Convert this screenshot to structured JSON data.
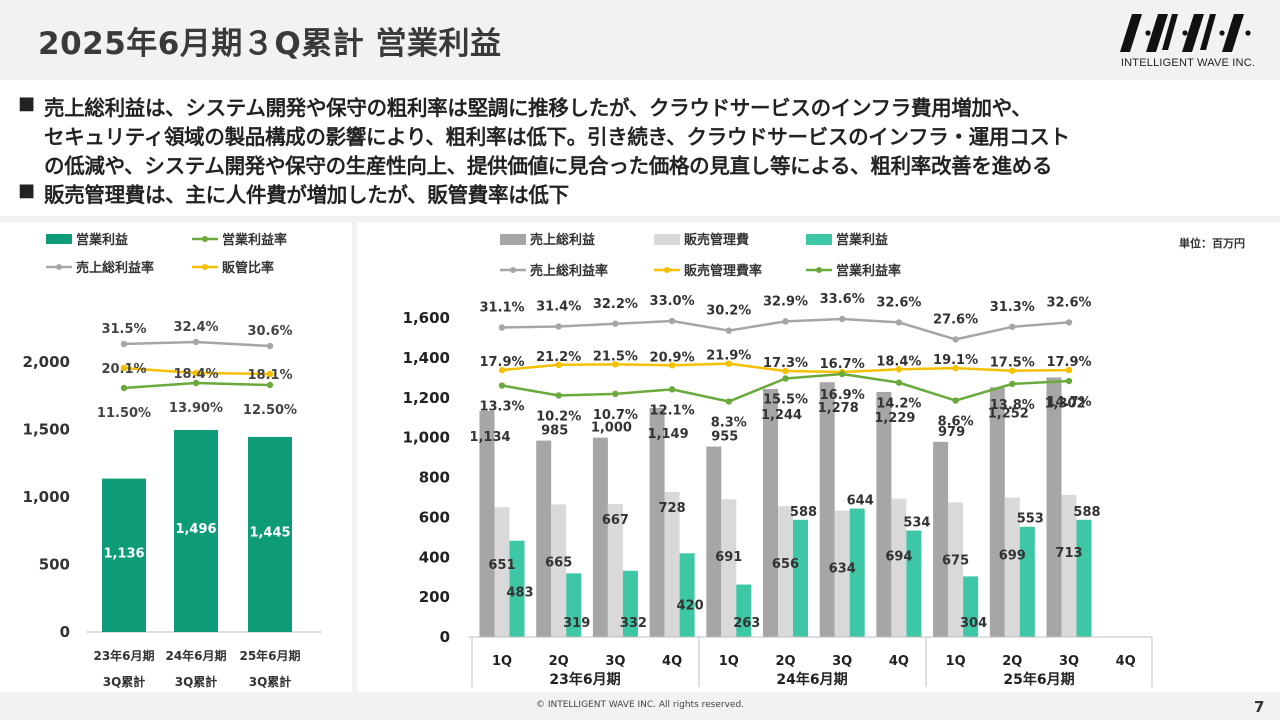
{
  "title": "2025年6月期３Q累計 営業利益",
  "logo": {
    "brand": "INTELLIGENT WAVE INC."
  },
  "bullets": [
    "売上総利益は、システム開発や保守の粗利率は堅調に推移したが、クラウドサービスのインフラ費用増加や、",
    "セキュリティ領域の製品構成の影響により、粗利率は低下。引き続き、クラウドサービスのインフラ・運用コスト",
    "の低減や、システム開発や保守の生産性向上、提供価値に見合った価格の見直し等による、粗利率改善を進める",
    "販売管理費は、主に人件費が増加したが、販管費率は低下"
  ],
  "footer": "© INTELLIGENT WAVE INC. All rights reserved.",
  "page_number": "7",
  "colors": {
    "op_profit": "#0e9c78",
    "gross": "#a6a6a6",
    "sga": "#d9d9d9",
    "op_profit_q": "#3ec7a4",
    "rate_gross": "#a6a6a6",
    "rate_sga": "#f5c000",
    "rate_op": "#6aaa3c"
  },
  "chart_data": [
    {
      "type": "bar",
      "legend": [
        "営業利益",
        "営業利益率",
        "売上総利益率",
        "販管比率"
      ],
      "categories": [
        [
          "23年6月期",
          "3Q累計"
        ],
        [
          "24年6月期",
          "3Q累計"
        ],
        [
          "25年6月期",
          "3Q累計"
        ]
      ],
      "yticks": [
        "0",
        "500",
        "1,000",
        "1,500",
        "2,000"
      ],
      "ylim": [
        0,
        2000
      ],
      "series": [
        {
          "name": "営業利益",
          "values": [
            1136,
            1496,
            1445
          ],
          "labels": [
            "1,136",
            "1,496",
            "1,445"
          ]
        }
      ],
      "rate_series": [
        {
          "name": "売上総利益率",
          "values": [
            31.5,
            32.4,
            30.6
          ],
          "labels": [
            "31.5%",
            "32.4%",
            "30.6%"
          ]
        },
        {
          "name": "販管比率",
          "values": [
            20.1,
            18.4,
            18.1
          ],
          "labels": [
            "20.1%",
            "18.4%",
            "18.1%"
          ]
        },
        {
          "name": "営業利益率",
          "values": [
            11.5,
            13.9,
            12.5
          ],
          "labels": [
            "11.50%",
            "13.90%",
            "12.50%"
          ]
        }
      ]
    },
    {
      "type": "bar",
      "unit": "単位：百万円",
      "legend": [
        "売上総利益",
        "販売管理費",
        "営業利益",
        "売上総利益率",
        "販売管理費率",
        "営業利益率"
      ],
      "categories": [
        "1Q",
        "2Q",
        "3Q",
        "4Q",
        "1Q",
        "2Q",
        "3Q",
        "4Q",
        "1Q",
        "2Q",
        "3Q",
        "4Q"
      ],
      "groups": [
        "23年6月期",
        "24年6月期",
        "25年6月期"
      ],
      "yticks": [
        "0",
        "200",
        "400",
        "600",
        "800",
        "1,000",
        "1,200",
        "1,400",
        "1,600"
      ],
      "ylim": [
        0,
        1600
      ],
      "series": [
        {
          "name": "売上総利益",
          "values": [
            1134,
            985,
            1000,
            1149,
            955,
            1244,
            1278,
            1229,
            979,
            1252,
            1302,
            null
          ],
          "labels": [
            "1,134",
            "985",
            "1,000",
            "1,149",
            "955",
            "1,244",
            "1,278",
            "1,229",
            "979",
            "1,252",
            "1,302",
            ""
          ]
        },
        {
          "name": "販売管理費",
          "values": [
            651,
            665,
            667,
            728,
            691,
            656,
            634,
            694,
            675,
            699,
            713,
            null
          ],
          "labels": [
            "651",
            "665",
            "667",
            "728",
            "691",
            "656",
            "634",
            "694",
            "675",
            "699",
            "713",
            ""
          ]
        },
        {
          "name": "営業利益",
          "values": [
            483,
            319,
            332,
            420,
            263,
            588,
            644,
            534,
            304,
            553,
            588,
            null
          ],
          "labels": [
            "483",
            "319",
            "332",
            "420",
            "263",
            "588",
            "644",
            "534",
            "304",
            "553",
            "588",
            ""
          ]
        }
      ],
      "rate_series": [
        {
          "name": "売上総利益率",
          "values": [
            31.1,
            31.4,
            32.2,
            33.0,
            30.2,
            32.9,
            33.6,
            32.6,
            27.6,
            31.3,
            32.6,
            null
          ],
          "labels": [
            "31.1%",
            "31.4%",
            "32.2%",
            "33.0%",
            "30.2%",
            "32.9%",
            "33.6%",
            "32.6%",
            "27.6%",
            "31.3%",
            "32.6%",
            ""
          ]
        },
        {
          "name": "販売管理費率",
          "values": [
            17.9,
            21.2,
            21.5,
            20.9,
            21.9,
            17.3,
            16.7,
            18.4,
            19.1,
            17.5,
            17.9,
            null
          ],
          "labels": [
            "17.9%",
            "21.2%",
            "21.5%",
            "20.9%",
            "21.9%",
            "17.3%",
            "16.7%",
            "18.4%",
            "19.1%",
            "17.5%",
            "17.9%",
            ""
          ]
        },
        {
          "name": "営業利益率",
          "values": [
            13.3,
            10.2,
            10.7,
            12.1,
            8.3,
            15.5,
            16.9,
            14.2,
            8.6,
            13.8,
            14.7,
            null
          ],
          "labels": [
            "13.3%",
            "10.2%",
            "10.7%",
            "12.1%",
            "8.3%",
            "15.5%",
            "16.9%",
            "14.2%",
            "8.6%",
            "13.8%",
            "14.7%",
            ""
          ]
        }
      ]
    }
  ]
}
